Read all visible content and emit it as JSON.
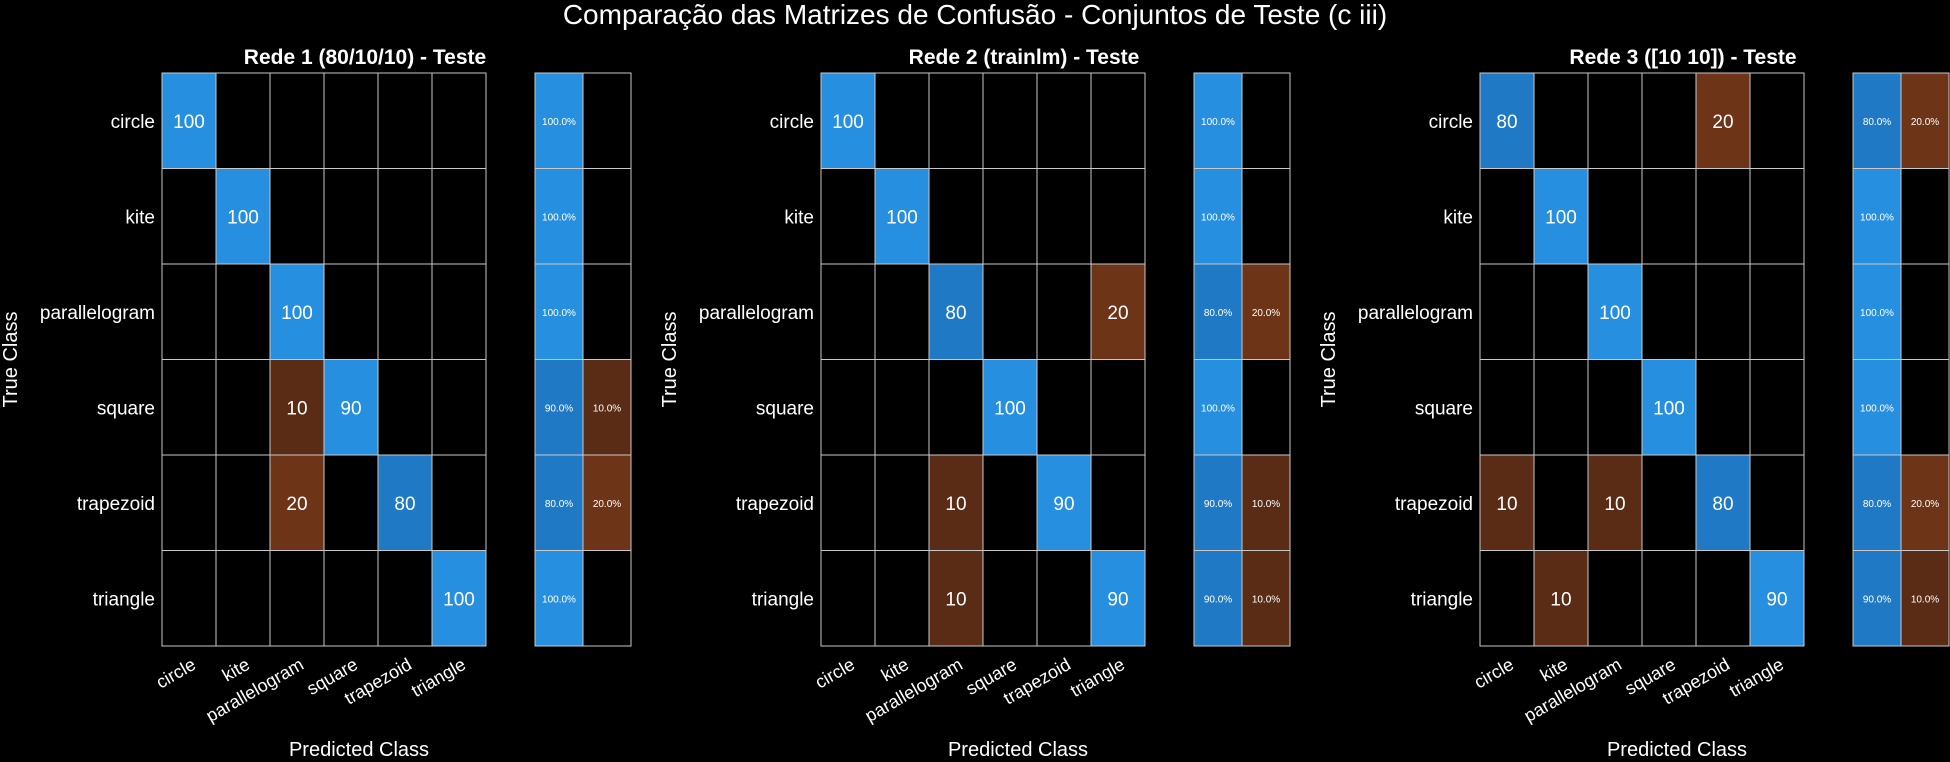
{
  "figure_title": "Comparação das Matrizes de Confusão - Conjuntos de Teste (c iii)",
  "colors": {
    "background": "#000000",
    "grid": "#c8c8c8",
    "correct_strong": "#268fe0",
    "correct_mid": "#2079c5",
    "error_strong": "#6e3417",
    "error_mid": "#5a2c15"
  },
  "chart_data": [
    {
      "type": "heatmap",
      "title": "Rede 1 (80/10/10) - Teste",
      "xlabel": "Predicted Class",
      "ylabel": "True Class",
      "classes": [
        "circle",
        "kite",
        "parallelogram",
        "square",
        "trapezoid",
        "triangle"
      ],
      "matrix": [
        [
          100,
          0,
          0,
          0,
          0,
          0
        ],
        [
          0,
          100,
          0,
          0,
          0,
          0
        ],
        [
          0,
          0,
          100,
          0,
          0,
          0
        ],
        [
          0,
          0,
          10,
          90,
          0,
          0
        ],
        [
          0,
          0,
          20,
          0,
          80,
          0
        ],
        [
          0,
          0,
          0,
          0,
          0,
          100
        ]
      ],
      "row_summary": [
        [
          "100.0%",
          ""
        ],
        [
          "100.0%",
          ""
        ],
        [
          "100.0%",
          ""
        ],
        [
          "90.0%",
          "10.0%"
        ],
        [
          "80.0%",
          "20.0%"
        ],
        [
          "100.0%",
          ""
        ]
      ]
    },
    {
      "type": "heatmap",
      "title": "Rede 2 (trainlm) - Teste",
      "xlabel": "Predicted Class",
      "ylabel": "True Class",
      "classes": [
        "circle",
        "kite",
        "parallelogram",
        "square",
        "trapezoid",
        "triangle"
      ],
      "matrix": [
        [
          100,
          0,
          0,
          0,
          0,
          0
        ],
        [
          0,
          100,
          0,
          0,
          0,
          0
        ],
        [
          0,
          0,
          80,
          0,
          0,
          20
        ],
        [
          0,
          0,
          0,
          100,
          0,
          0
        ],
        [
          0,
          0,
          10,
          0,
          90,
          0
        ],
        [
          0,
          0,
          10,
          0,
          0,
          90
        ]
      ],
      "row_summary": [
        [
          "100.0%",
          ""
        ],
        [
          "100.0%",
          ""
        ],
        [
          "80.0%",
          "20.0%"
        ],
        [
          "100.0%",
          ""
        ],
        [
          "90.0%",
          "10.0%"
        ],
        [
          "90.0%",
          "10.0%"
        ]
      ]
    },
    {
      "type": "heatmap",
      "title": "Rede 3 ([10 10]) - Teste",
      "xlabel": "Predicted Class",
      "ylabel": "True Class",
      "classes": [
        "circle",
        "kite",
        "parallelogram",
        "square",
        "trapezoid",
        "triangle"
      ],
      "matrix": [
        [
          80,
          0,
          0,
          0,
          20,
          0
        ],
        [
          0,
          100,
          0,
          0,
          0,
          0
        ],
        [
          0,
          0,
          100,
          0,
          0,
          0
        ],
        [
          0,
          0,
          0,
          100,
          0,
          0
        ],
        [
          10,
          0,
          10,
          0,
          80,
          0
        ],
        [
          0,
          10,
          0,
          0,
          0,
          90
        ]
      ],
      "row_summary": [
        [
          "80.0%",
          "20.0%"
        ],
        [
          "100.0%",
          ""
        ],
        [
          "100.0%",
          ""
        ],
        [
          "100.0%",
          ""
        ],
        [
          "80.0%",
          "20.0%"
        ],
        [
          "90.0%",
          "10.0%"
        ]
      ]
    }
  ]
}
